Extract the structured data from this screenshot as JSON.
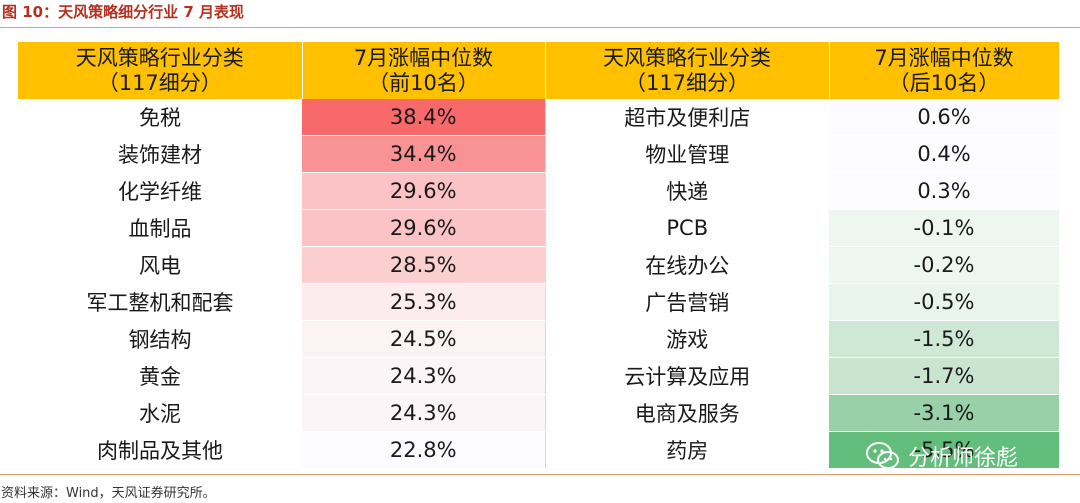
{
  "figure_title": "图 10：天风策略细分行业 7 月表现",
  "headers": {
    "col1": [
      "天风策略行业分类",
      "（117细分）"
    ],
    "col2": [
      "7月涨幅中位数",
      "（前10名）"
    ],
    "col3": [
      "天风策略行业分类",
      "（117细分）"
    ],
    "col4": [
      "7月涨幅中位数",
      "（后10名）"
    ]
  },
  "rows": [
    {
      "top_industry": "免税",
      "top_value": "38.4%",
      "top_color": "#f8696b",
      "bottom_industry": "超市及便利店",
      "bottom_value": "0.6%",
      "bottom_color": "#fcfcff"
    },
    {
      "top_industry": "装饰建材",
      "top_value": "34.4%",
      "top_color": "#f99294",
      "bottom_industry": "物业管理",
      "bottom_value": "0.4%",
      "bottom_color": "#fcfcff"
    },
    {
      "top_industry": "化学纤维",
      "top_value": "29.6%",
      "top_color": "#fbc3c5",
      "bottom_industry": "快递",
      "bottom_value": "0.3%",
      "bottom_color": "#fcfcff"
    },
    {
      "top_industry": "血制品",
      "top_value": "29.6%",
      "top_color": "#fbc3c5",
      "bottom_industry": "PCB",
      "bottom_value": "-0.1%",
      "bottom_color": "#eef6f0"
    },
    {
      "top_industry": "风电",
      "top_value": "28.5%",
      "top_color": "#fbced0",
      "bottom_industry": "在线办公",
      "bottom_value": "-0.2%",
      "bottom_color": "#eef6f0"
    },
    {
      "top_industry": "军工整机和配套",
      "top_value": "25.3%",
      "top_color": "#fcecee",
      "bottom_industry": "广告营销",
      "bottom_value": "-0.5%",
      "bottom_color": "#e9f4ec"
    },
    {
      "top_industry": "钢结构",
      "top_value": "24.5%",
      "top_color": "#fcf3f5",
      "bottom_industry": "游戏",
      "bottom_value": "-1.5%",
      "bottom_color": "#cfe8d6"
    },
    {
      "top_industry": "黄金",
      "top_value": "24.3%",
      "top_color": "#fcf5f7",
      "bottom_industry": "云计算及应用",
      "bottom_value": "-1.7%",
      "bottom_color": "#c9e5d0"
    },
    {
      "top_industry": "水泥",
      "top_value": "24.3%",
      "top_color": "#fcf5f7",
      "bottom_industry": "电商及服务",
      "bottom_value": "-3.1%",
      "bottom_color": "#99d0a7"
    },
    {
      "top_industry": "肉制品及其他",
      "top_value": "22.8%",
      "top_color": "#fcfcff",
      "bottom_industry": "药房",
      "bottom_value": "-5.5%",
      "bottom_color": "#63be7b"
    }
  ],
  "source": "资料来源：Wind，天风证券研究所。",
  "watermark": {
    "text": "分析师徐彪",
    "icon": "wechat-icon"
  }
}
